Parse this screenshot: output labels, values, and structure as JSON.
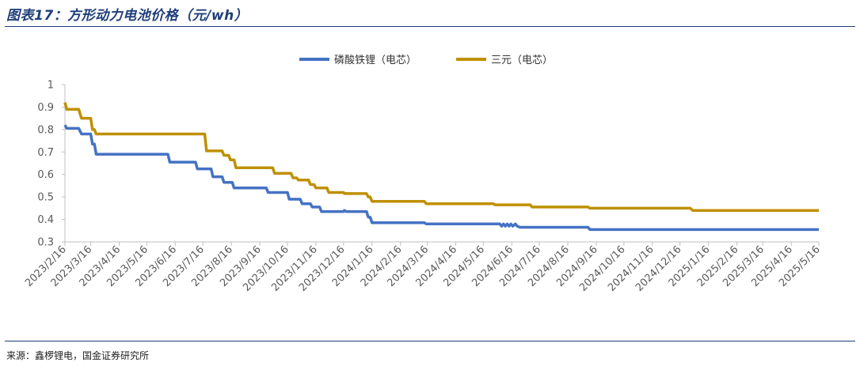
{
  "figure": {
    "title": "图表17：方形动力电池价格（元/wh）",
    "source": "来源：鑫椤锂电，国金证券研究所"
  },
  "colors": {
    "lfp": "#4472c4",
    "ternary": "#bf9000",
    "rule": "#1f3f7a",
    "axis": "#bfbfbf"
  },
  "chart_data": {
    "type": "line",
    "legend_position": "top-center",
    "grid": false,
    "ylim": [
      0.3,
      1.0
    ],
    "yticks": [
      "1",
      "0.9",
      "0.8",
      "0.7",
      "0.6",
      "0.5",
      "0.4",
      "0.3"
    ],
    "x_tick_labels": [
      "2023/2/16",
      "2023/3/16",
      "2023/4/16",
      "2023/5/16",
      "2023/6/16",
      "2023/7/16",
      "2023/8/16",
      "2023/9/16",
      "2023/10/16",
      "2023/11/16",
      "2023/12/16",
      "2024/1/16",
      "2024/2/16",
      "2024/3/16",
      "2024/4/16",
      "2024/5/16",
      "2024/6/16",
      "2024/7/16",
      "2024/8/16",
      "2024/9/16",
      "2024/10/16",
      "2024/11/16",
      "2024/12/16",
      "2025/1/16",
      "2025/2/16",
      "2025/3/16",
      "2025/4/16",
      "2025/5/16"
    ],
    "series": [
      {
        "name": "磷酸铁锂（电芯）",
        "points": [
          [
            "2023/2/16",
            0.82
          ],
          [
            "2023/2/18",
            0.805
          ],
          [
            "2023/3/3",
            0.805
          ],
          [
            "2023/3/6",
            0.78
          ],
          [
            "2023/3/16",
            0.78
          ],
          [
            "2023/3/18",
            0.735
          ],
          [
            "2023/3/20",
            0.735
          ],
          [
            "2023/3/22",
            0.69
          ],
          [
            "2023/6/8",
            0.69
          ],
          [
            "2023/6/10",
            0.655
          ],
          [
            "2023/7/8",
            0.655
          ],
          [
            "2023/7/10",
            0.625
          ],
          [
            "2023/7/25",
            0.625
          ],
          [
            "2023/7/27",
            0.59
          ],
          [
            "2023/8/6",
            0.59
          ],
          [
            "2023/8/8",
            0.565
          ],
          [
            "2023/8/17",
            0.565
          ],
          [
            "2023/8/19",
            0.54
          ],
          [
            "2023/9/23",
            0.54
          ],
          [
            "2023/9/25",
            0.52
          ],
          [
            "2023/10/16",
            0.52
          ],
          [
            "2023/10/18",
            0.49
          ],
          [
            "2023/10/30",
            0.49
          ],
          [
            "2023/11/1",
            0.47
          ],
          [
            "2023/11/10",
            0.47
          ],
          [
            "2023/11/12",
            0.455
          ],
          [
            "2023/11/20",
            0.455
          ],
          [
            "2023/11/22",
            0.435
          ],
          [
            "2023/12/16",
            0.435
          ],
          [
            "2023/12/17",
            0.44
          ],
          [
            "2023/12/19",
            0.435
          ],
          [
            "2024/1/10",
            0.435
          ],
          [
            "2024/1/12",
            0.41
          ],
          [
            "2024/1/14",
            0.41
          ],
          [
            "2024/1/16",
            0.385
          ],
          [
            "2024/3/13",
            0.385
          ],
          [
            "2024/3/15",
            0.38
          ],
          [
            "2024/6/3",
            0.38
          ],
          [
            "2024/6/5",
            0.37
          ],
          [
            "2024/6/7",
            0.38
          ],
          [
            "2024/6/9",
            0.37
          ],
          [
            "2024/6/11",
            0.38
          ],
          [
            "2024/6/13",
            0.37
          ],
          [
            "2024/6/15",
            0.38
          ],
          [
            "2024/6/17",
            0.37
          ],
          [
            "2024/6/20",
            0.38
          ],
          [
            "2024/6/22",
            0.37
          ],
          [
            "2024/6/25",
            0.365
          ],
          [
            "2024/9/7",
            0.365
          ],
          [
            "2024/9/9",
            0.355
          ],
          [
            "2025/5/16",
            0.355
          ]
        ]
      },
      {
        "name": "三元（电芯）",
        "points": [
          [
            "2023/2/16",
            0.92
          ],
          [
            "2023/2/18",
            0.89
          ],
          [
            "2023/3/3",
            0.89
          ],
          [
            "2023/3/6",
            0.85
          ],
          [
            "2023/3/16",
            0.85
          ],
          [
            "2023/3/18",
            0.8
          ],
          [
            "2023/3/20",
            0.8
          ],
          [
            "2023/3/22",
            0.78
          ],
          [
            "2023/7/18",
            0.78
          ],
          [
            "2023/7/20",
            0.705
          ],
          [
            "2023/8/6",
            0.705
          ],
          [
            "2023/8/8",
            0.685
          ],
          [
            "2023/8/13",
            0.685
          ],
          [
            "2023/8/15",
            0.665
          ],
          [
            "2023/8/19",
            0.665
          ],
          [
            "2023/8/21",
            0.63
          ],
          [
            "2023/9/30",
            0.63
          ],
          [
            "2023/10/2",
            0.605
          ],
          [
            "2023/10/20",
            0.605
          ],
          [
            "2023/10/22",
            0.585
          ],
          [
            "2023/10/26",
            0.585
          ],
          [
            "2023/10/28",
            0.575
          ],
          [
            "2023/11/8",
            0.575
          ],
          [
            "2023/11/10",
            0.555
          ],
          [
            "2023/11/14",
            0.555
          ],
          [
            "2023/11/16",
            0.54
          ],
          [
            "2023/11/28",
            0.54
          ],
          [
            "2023/11/30",
            0.52
          ],
          [
            "2023/12/16",
            0.52
          ],
          [
            "2023/12/17",
            0.515
          ],
          [
            "2024/1/10",
            0.515
          ],
          [
            "2024/1/12",
            0.5
          ],
          [
            "2024/1/14",
            0.5
          ],
          [
            "2024/1/16",
            0.48
          ],
          [
            "2024/3/13",
            0.48
          ],
          [
            "2024/3/15",
            0.47
          ],
          [
            "2024/5/27",
            0.47
          ],
          [
            "2024/5/29",
            0.465
          ],
          [
            "2024/7/6",
            0.465
          ],
          [
            "2024/7/8",
            0.455
          ],
          [
            "2024/9/7",
            0.455
          ],
          [
            "2024/9/9",
            0.45
          ],
          [
            "2024/12/27",
            0.45
          ],
          [
            "2024/12/30",
            0.44
          ],
          [
            "2025/5/16",
            0.44
          ]
        ]
      }
    ]
  }
}
